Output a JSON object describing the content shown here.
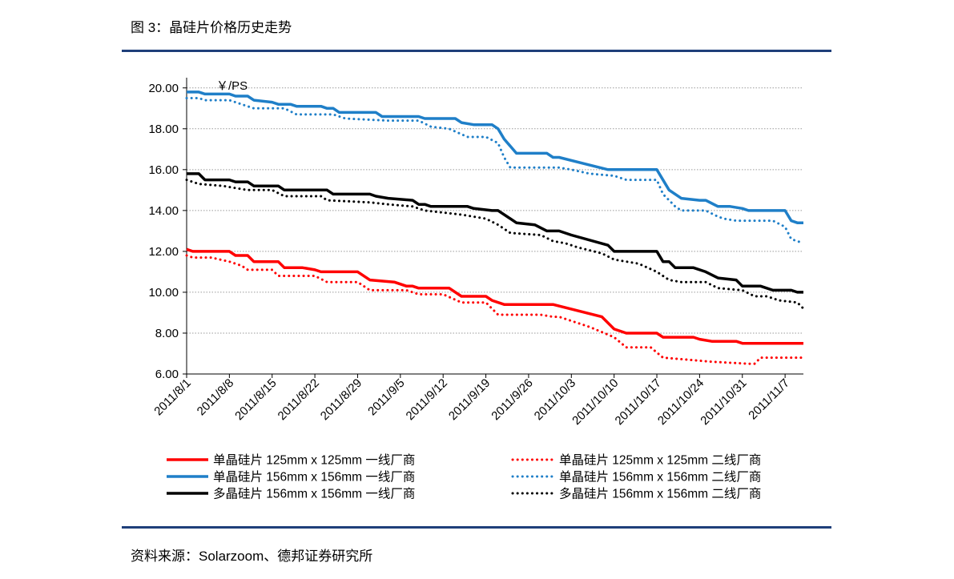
{
  "figure_title": "图 3：晶硅片价格历史走势",
  "source": "资料来源：Solarzoom、德邦证券研究所",
  "colors": {
    "red": "#ff0000",
    "blue": "#1f7fc8",
    "black": "#000000",
    "rule": "#1f3f7a"
  },
  "chart_data": {
    "type": "line",
    "title": "",
    "ylabel": "￥/PS",
    "ylim": [
      6,
      20.5
    ],
    "yticks": [
      "6.00",
      "8.00",
      "10.00",
      "12.00",
      "14.00",
      "16.00",
      "18.00",
      "20.00"
    ],
    "grid": true,
    "legend_position": "bottom",
    "x_tick_labels": [
      "2011/8/1",
      "2011/8/8",
      "2011/8/15",
      "2011/8/22",
      "2011/8/29",
      "2011/9/5",
      "2011/9/12",
      "2011/9/19",
      "2011/9/26",
      "2011/10/3",
      "2011/10/10",
      "2011/10/17",
      "2011/10/24",
      "2011/10/31",
      "2011/11/7"
    ],
    "series": [
      {
        "name": "单晶硅片 125mm x 125mm 一线厂商",
        "color": "red",
        "style": "solid",
        "points": [
          [
            "2011/8/1",
            12.1
          ],
          [
            "2011/8/2",
            12.0
          ],
          [
            "2011/8/8",
            12.0
          ],
          [
            "2011/8/9",
            11.8
          ],
          [
            "2011/8/11",
            11.8
          ],
          [
            "2011/8/12",
            11.5
          ],
          [
            "2011/8/16",
            11.5
          ],
          [
            "2011/8/17",
            11.2
          ],
          [
            "2011/8/20",
            11.2
          ],
          [
            "2011/8/22",
            11.1
          ],
          [
            "2011/8/23",
            11.0
          ],
          [
            "2011/8/29",
            11.0
          ],
          [
            "2011/8/31",
            10.6
          ],
          [
            "2011/9/4",
            10.5
          ],
          [
            "2011/9/6",
            10.3
          ],
          [
            "2011/9/7",
            10.3
          ],
          [
            "2011/9/8",
            10.2
          ],
          [
            "2011/9/13",
            10.2
          ],
          [
            "2011/9/15",
            9.8
          ],
          [
            "2011/9/19",
            9.8
          ],
          [
            "2011/9/20",
            9.6
          ],
          [
            "2011/9/22",
            9.4
          ],
          [
            "2011/9/30",
            9.4
          ],
          [
            "2011/10/8",
            8.8
          ],
          [
            "2011/10/10",
            8.2
          ],
          [
            "2011/10/12",
            8.0
          ],
          [
            "2011/10/17",
            8.0
          ],
          [
            "2011/10/18",
            7.8
          ],
          [
            "2011/10/23",
            7.8
          ],
          [
            "2011/10/24",
            7.7
          ],
          [
            "2011/10/26",
            7.6
          ],
          [
            "2011/10/30",
            7.6
          ],
          [
            "2011/10/31",
            7.5
          ],
          [
            "2011/11/10",
            7.5
          ]
        ]
      },
      {
        "name": "单晶硅片 125mm x 125mm 二线厂商",
        "color": "red",
        "style": "dotted",
        "points": [
          [
            "2011/8/1",
            11.8
          ],
          [
            "2011/8/2",
            11.7
          ],
          [
            "2011/8/5",
            11.7
          ],
          [
            "2011/8/8",
            11.5
          ],
          [
            "2011/8/10",
            11.3
          ],
          [
            "2011/8/11",
            11.1
          ],
          [
            "2011/8/15",
            11.1
          ],
          [
            "2011/8/16",
            10.8
          ],
          [
            "2011/8/22",
            10.8
          ],
          [
            "2011/8/24",
            10.5
          ],
          [
            "2011/8/29",
            10.5
          ],
          [
            "2011/8/31",
            10.1
          ],
          [
            "2011/9/6",
            10.1
          ],
          [
            "2011/9/8",
            9.9
          ],
          [
            "2011/9/12",
            9.9
          ],
          [
            "2011/9/15",
            9.5
          ],
          [
            "2011/9/19",
            9.5
          ],
          [
            "2011/9/21",
            8.9
          ],
          [
            "2011/9/28",
            8.9
          ],
          [
            "2011/9/30",
            8.8
          ],
          [
            "2011/10/1",
            8.8
          ],
          [
            "2011/10/3",
            8.6
          ],
          [
            "2011/10/6",
            8.3
          ],
          [
            "2011/10/10",
            7.8
          ],
          [
            "2011/10/12",
            7.3
          ],
          [
            "2011/10/16",
            7.3
          ],
          [
            "2011/10/18",
            6.8
          ],
          [
            "2011/10/26",
            6.6
          ],
          [
            "2011/11/1",
            6.5
          ],
          [
            "2011/11/2",
            6.5
          ],
          [
            "2011/11/3",
            6.8
          ],
          [
            "2011/11/10",
            6.8
          ]
        ]
      },
      {
        "name": "单晶硅片 156mm x 156mm 一线厂商",
        "color": "blue",
        "style": "solid",
        "points": [
          [
            "2011/8/1",
            19.8
          ],
          [
            "2011/8/3",
            19.8
          ],
          [
            "2011/8/4",
            19.7
          ],
          [
            "2011/8/8",
            19.7
          ],
          [
            "2011/8/9",
            19.6
          ],
          [
            "2011/8/11",
            19.6
          ],
          [
            "2011/8/12",
            19.4
          ],
          [
            "2011/8/15",
            19.3
          ],
          [
            "2011/8/16",
            19.2
          ],
          [
            "2011/8/18",
            19.2
          ],
          [
            "2011/8/19",
            19.1
          ],
          [
            "2011/8/23",
            19.1
          ],
          [
            "2011/8/24",
            19.0
          ],
          [
            "2011/8/25",
            19.0
          ],
          [
            "2011/8/26",
            18.8
          ],
          [
            "2011/9/1",
            18.8
          ],
          [
            "2011/9/2",
            18.6
          ],
          [
            "2011/9/8",
            18.6
          ],
          [
            "2011/9/9",
            18.5
          ],
          [
            "2011/9/14",
            18.5
          ],
          [
            "2011/9/15",
            18.3
          ],
          [
            "2011/9/17",
            18.2
          ],
          [
            "2011/9/20",
            18.2
          ],
          [
            "2011/9/21",
            18.0
          ],
          [
            "2011/9/22",
            17.5
          ],
          [
            "2011/9/24",
            16.8
          ],
          [
            "2011/9/29",
            16.8
          ],
          [
            "2011/9/30",
            16.6
          ],
          [
            "2011/10/1",
            16.6
          ],
          [
            "2011/10/5",
            16.3
          ],
          [
            "2011/10/9",
            16.0
          ],
          [
            "2011/10/17",
            16.0
          ],
          [
            "2011/10/19",
            15.0
          ],
          [
            "2011/10/21",
            14.6
          ],
          [
            "2011/10/24",
            14.5
          ],
          [
            "2011/10/25",
            14.5
          ],
          [
            "2011/10/27",
            14.2
          ],
          [
            "2011/10/29",
            14.2
          ],
          [
            "2011/10/31",
            14.1
          ],
          [
            "2011/11/1",
            14.0
          ],
          [
            "2011/11/7",
            14.0
          ],
          [
            "2011/11/8",
            13.5
          ],
          [
            "2011/11/9",
            13.4
          ],
          [
            "2011/11/10",
            13.4
          ]
        ]
      },
      {
        "name": "单晶硅片 156mm x 156mm 二线厂商",
        "color": "blue",
        "style": "dotted",
        "points": [
          [
            "2011/8/1",
            19.5
          ],
          [
            "2011/8/3",
            19.5
          ],
          [
            "2011/8/4",
            19.4
          ],
          [
            "2011/8/8",
            19.4
          ],
          [
            "2011/8/10",
            19.2
          ],
          [
            "2011/8/12",
            19.0
          ],
          [
            "2011/8/17",
            19.0
          ],
          [
            "2011/8/19",
            18.7
          ],
          [
            "2011/8/25",
            18.7
          ],
          [
            "2011/8/27",
            18.5
          ],
          [
            "2011/9/3",
            18.4
          ],
          [
            "2011/9/8",
            18.4
          ],
          [
            "2011/9/10",
            18.1
          ],
          [
            "2011/9/13",
            18.0
          ],
          [
            "2011/9/16",
            17.6
          ],
          [
            "2011/9/19",
            17.6
          ],
          [
            "2011/9/21",
            17.3
          ],
          [
            "2011/9/22",
            16.6
          ],
          [
            "2011/9/23",
            16.1
          ],
          [
            "2011/10/1",
            16.1
          ],
          [
            "2011/10/3",
            16.0
          ],
          [
            "2011/10/6",
            15.8
          ],
          [
            "2011/10/10",
            15.7
          ],
          [
            "2011/10/12",
            15.5
          ],
          [
            "2011/10/17",
            15.5
          ],
          [
            "2011/10/18",
            14.8
          ],
          [
            "2011/10/20",
            14.2
          ],
          [
            "2011/10/21",
            14.0
          ],
          [
            "2011/10/25",
            14.0
          ],
          [
            "2011/10/27",
            13.7
          ],
          [
            "2011/10/28",
            13.6
          ],
          [
            "2011/10/30",
            13.5
          ],
          [
            "2011/11/5",
            13.5
          ],
          [
            "2011/11/7",
            13.2
          ],
          [
            "2011/11/8",
            12.6
          ],
          [
            "2011/11/10",
            12.4
          ]
        ]
      },
      {
        "name": "多晶硅片 156mm x 156mm 一线厂商",
        "color": "black",
        "style": "solid",
        "points": [
          [
            "2011/8/1",
            15.8
          ],
          [
            "2011/8/3",
            15.8
          ],
          [
            "2011/8/4",
            15.5
          ],
          [
            "2011/8/8",
            15.5
          ],
          [
            "2011/8/9",
            15.4
          ],
          [
            "2011/8/11",
            15.4
          ],
          [
            "2011/8/12",
            15.2
          ],
          [
            "2011/8/16",
            15.2
          ],
          [
            "2011/8/17",
            15.0
          ],
          [
            "2011/8/24",
            15.0
          ],
          [
            "2011/8/25",
            14.8
          ],
          [
            "2011/8/31",
            14.8
          ],
          [
            "2011/9/1",
            14.7
          ],
          [
            "2011/9/3",
            14.6
          ],
          [
            "2011/9/7",
            14.5
          ],
          [
            "2011/9/8",
            14.3
          ],
          [
            "2011/9/9",
            14.3
          ],
          [
            "2011/9/10",
            14.2
          ],
          [
            "2011/9/16",
            14.2
          ],
          [
            "2011/9/17",
            14.1
          ],
          [
            "2011/9/20",
            14.0
          ],
          [
            "2011/9/21",
            14.0
          ],
          [
            "2011/9/23",
            13.6
          ],
          [
            "2011/9/24",
            13.4
          ],
          [
            "2011/9/27",
            13.3
          ],
          [
            "2011/9/29",
            13.0
          ],
          [
            "2011/10/1",
            13.0
          ],
          [
            "2011/10/3",
            12.8
          ],
          [
            "2011/10/9",
            12.3
          ],
          [
            "2011/10/10",
            12.0
          ],
          [
            "2011/10/17",
            12.0
          ],
          [
            "2011/10/18",
            11.5
          ],
          [
            "2011/10/19",
            11.5
          ],
          [
            "2011/10/20",
            11.2
          ],
          [
            "2011/10/23",
            11.2
          ],
          [
            "2011/10/25",
            11.0
          ],
          [
            "2011/10/27",
            10.7
          ],
          [
            "2011/10/30",
            10.6
          ],
          [
            "2011/10/31",
            10.3
          ],
          [
            "2011/11/3",
            10.3
          ],
          [
            "2011/11/5",
            10.1
          ],
          [
            "2011/11/8",
            10.1
          ],
          [
            "2011/11/9",
            10.0
          ],
          [
            "2011/11/10",
            10.0
          ]
        ]
      },
      {
        "name": "多晶硅片 156mm x 156mm 二线厂商",
        "color": "black",
        "style": "dotted",
        "points": [
          [
            "2011/8/1",
            15.5
          ],
          [
            "2011/8/3",
            15.3
          ],
          [
            "2011/8/7",
            15.2
          ],
          [
            "2011/8/9",
            15.1
          ],
          [
            "2011/8/11",
            15.0
          ],
          [
            "2011/8/15",
            15.0
          ],
          [
            "2011/8/17",
            14.7
          ],
          [
            "2011/8/23",
            14.7
          ],
          [
            "2011/8/24",
            14.5
          ],
          [
            "2011/8/31",
            14.4
          ],
          [
            "2011/9/3",
            14.3
          ],
          [
            "2011/9/7",
            14.2
          ],
          [
            "2011/9/9",
            14.0
          ],
          [
            "2011/9/12",
            13.9
          ],
          [
            "2011/9/15",
            13.8
          ],
          [
            "2011/9/19",
            13.6
          ],
          [
            "2011/9/21",
            13.3
          ],
          [
            "2011/9/23",
            12.9
          ],
          [
            "2011/9/28",
            12.8
          ],
          [
            "2011/9/30",
            12.5
          ],
          [
            "2011/10/2",
            12.4
          ],
          [
            "2011/10/4",
            12.2
          ],
          [
            "2011/10/8",
            11.9
          ],
          [
            "2011/10/10",
            11.6
          ],
          [
            "2011/10/14",
            11.4
          ],
          [
            "2011/10/17",
            11.0
          ],
          [
            "2011/10/19",
            10.6
          ],
          [
            "2011/10/21",
            10.5
          ],
          [
            "2011/10/25",
            10.5
          ],
          [
            "2011/10/27",
            10.2
          ],
          [
            "2011/10/31",
            10.1
          ],
          [
            "2011/11/2",
            9.8
          ],
          [
            "2011/11/4",
            9.8
          ],
          [
            "2011/11/6",
            9.6
          ],
          [
            "2011/11/9",
            9.5
          ],
          [
            "2011/11/10",
            9.2
          ]
        ]
      }
    ]
  }
}
